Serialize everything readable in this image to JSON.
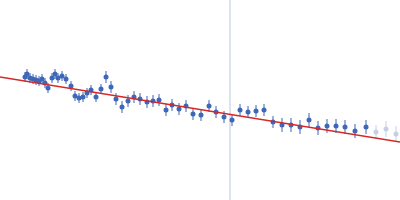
{
  "chart_data": {
    "type": "scatter",
    "tick_labels": false,
    "grid": false,
    "xlim": [
      0,
      400
    ],
    "ylim": [
      0,
      200
    ],
    "series": [
      {
        "type": "line",
        "color": "#c9d3ea",
        "x": [
          230,
          230
        ],
        "values": [
          0,
          200
        ]
      },
      {
        "type": "scatter",
        "color": "#3d67b8",
        "marker": "circle",
        "x": [
          25,
          27,
          30,
          33,
          36,
          39,
          42,
          45,
          48,
          52,
          55,
          58,
          62,
          66,
          71,
          75,
          79,
          83,
          87,
          91,
          96,
          101,
          106,
          111,
          116,
          122,
          128,
          134,
          140,
          147,
          153,
          159,
          166,
          172,
          179,
          186,
          193,
          201,
          209,
          216,
          224,
          232,
          240,
          248,
          256,
          264,
          273,
          282,
          291,
          300,
          309,
          318,
          327,
          336,
          345,
          355,
          366
        ],
        "values": [
          123,
          126,
          122,
          121,
          120,
          119,
          121,
          117,
          112,
          122,
          126,
          122,
          124,
          121,
          114,
          104,
          102,
          103,
          107,
          110,
          103,
          111,
          123,
          113,
          101,
          93,
          99,
          103,
          101,
          98,
          99,
          100,
          90,
          95,
          91,
          94,
          86,
          85,
          94,
          88,
          83,
          80,
          90,
          88,
          89,
          90,
          78,
          75,
          75,
          73,
          80,
          72,
          74,
          74,
          73,
          69,
          73
        ],
        "errors": [
          5,
          5,
          5,
          5,
          5,
          5,
          5,
          5,
          5,
          5,
          5,
          5,
          5,
          5,
          5,
          5,
          5,
          5,
          5,
          5,
          5,
          5,
          6,
          6,
          6,
          6,
          6,
          6,
          6,
          6,
          6,
          6,
          6,
          6,
          6,
          6,
          6,
          6,
          6,
          6,
          6,
          6,
          6,
          6,
          6,
          6,
          6,
          7,
          7,
          7,
          7,
          7,
          7,
          7,
          7,
          7,
          7
        ]
      },
      {
        "type": "scatter",
        "color": "#c5d0e8",
        "marker": "circle",
        "x": [
          376,
          386,
          396
        ],
        "values": [
          68,
          71,
          66
        ],
        "errors": [
          7,
          8,
          8
        ]
      },
      {
        "type": "line",
        "color": "#d62728",
        "x": [
          0,
          400
        ],
        "values": [
          123,
          58
        ]
      }
    ]
  }
}
